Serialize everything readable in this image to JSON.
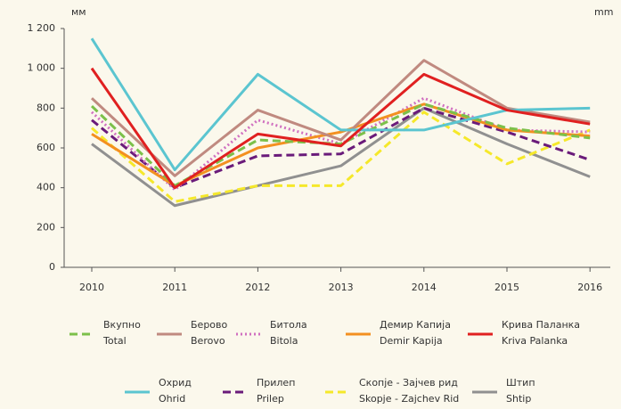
{
  "chart_data": {
    "type": "line",
    "y_unit_left": "мм",
    "y_unit_right": "mm",
    "categories": [
      "2010",
      "2011",
      "2012",
      "2013",
      "2014",
      "2015",
      "2016"
    ],
    "ylim": [
      0,
      1200
    ],
    "yticks": [
      0,
      200,
      400,
      600,
      800,
      {
        "value": 1000,
        "label": "1 000"
      },
      {
        "value": 1200,
        "label": "1 200"
      }
    ],
    "grid": false,
    "series": [
      {
        "name": [
          "Вкупно",
          "Total"
        ],
        "color": "#7cc04a",
        "style": "dashed",
        "values": [
          810,
          410,
          640,
          620,
          820,
          700,
          650
        ]
      },
      {
        "name": [
          "Берово",
          "Berovo"
        ],
        "color": "#c08a80",
        "style": "solid",
        "values": [
          850,
          460,
          790,
          640,
          1040,
          800,
          730
        ]
      },
      {
        "name": [
          "Битола",
          "Bitola"
        ],
        "color": "#d070c0",
        "style": "dotted",
        "values": [
          780,
          390,
          740,
          620,
          850,
          690,
          680
        ]
      },
      {
        "name": [
          "Демир Капија",
          "Demir Kapija"
        ],
        "color": "#f39020",
        "style": "solid",
        "values": [
          670,
          410,
          600,
          680,
          820,
          690,
          660
        ]
      },
      {
        "name": [
          "Крива Паланка",
          "Kriva Palanka"
        ],
        "color": "#e02020",
        "style": "solid",
        "values": [
          1000,
          400,
          670,
          610,
          970,
          790,
          720
        ]
      },
      {
        "name": [
          "Охрид",
          "Ohrid"
        ],
        "color": "#5bc5d0",
        "style": "solid",
        "values": [
          1150,
          490,
          970,
          690,
          690,
          790,
          800
        ]
      },
      {
        "name": [
          "Прилеп",
          "Prilep"
        ],
        "color": "#6a1b7a",
        "style": "dashed",
        "values": [
          740,
          400,
          560,
          570,
          800,
          680,
          540
        ]
      },
      {
        "name": [
          "Скопје - Зајчев рид",
          "Skopje - Zajchev Rid"
        ],
        "color": "#f5e82a",
        "style": "dashed",
        "values": [
          700,
          330,
          410,
          410,
          780,
          520,
          690
        ]
      },
      {
        "name": [
          "Штип",
          "Shtip"
        ],
        "color": "#909090",
        "style": "solid",
        "values": [
          620,
          310,
          410,
          510,
          800,
          620,
          455
        ]
      }
    ]
  }
}
